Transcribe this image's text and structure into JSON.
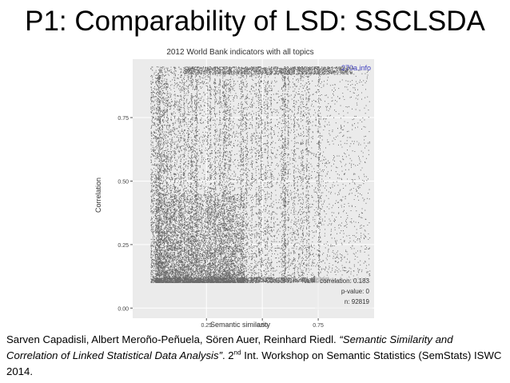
{
  "slide": {
    "title": "P1: Comparability of LSD: SSCLSDA"
  },
  "figure": {
    "source_label": "270a.info",
    "stats": {
      "correlation": "correlation: 0.183",
      "pvalue": "p-value: 0",
      "n": "n: 92819"
    }
  },
  "chart_data": {
    "type": "scatter",
    "title": "2012 World Bank indicators with all topics",
    "xlabel": "Semantic similarity",
    "ylabel": "Correlation",
    "x_ticks": [
      "0.25",
      "0.50",
      "0.75"
    ],
    "y_ticks": [
      "0.00",
      "0.25",
      "0.50",
      "0.75"
    ],
    "xlim": [
      0.0,
      1.0
    ],
    "ylim": [
      0.0,
      1.0
    ],
    "y_range_of_points": [
      0.1,
      0.95
    ],
    "grid": true,
    "point_count": 92819,
    "correlation": 0.183,
    "p_value": 0
  },
  "citation": {
    "authors": "Sarven Capadisli, Albert Meroño-Peñuela, Sören Auer, Reinhard Riedl. ",
    "paper_title": "“Semantic Similarity and Correlation of Linked Statistical Data Analysis”",
    "after_title": ". 2",
    "ordinal_sup": "nd",
    "venue": " Int. Workshop on Semantic Statistics (SemStats) ISWC 2014."
  }
}
